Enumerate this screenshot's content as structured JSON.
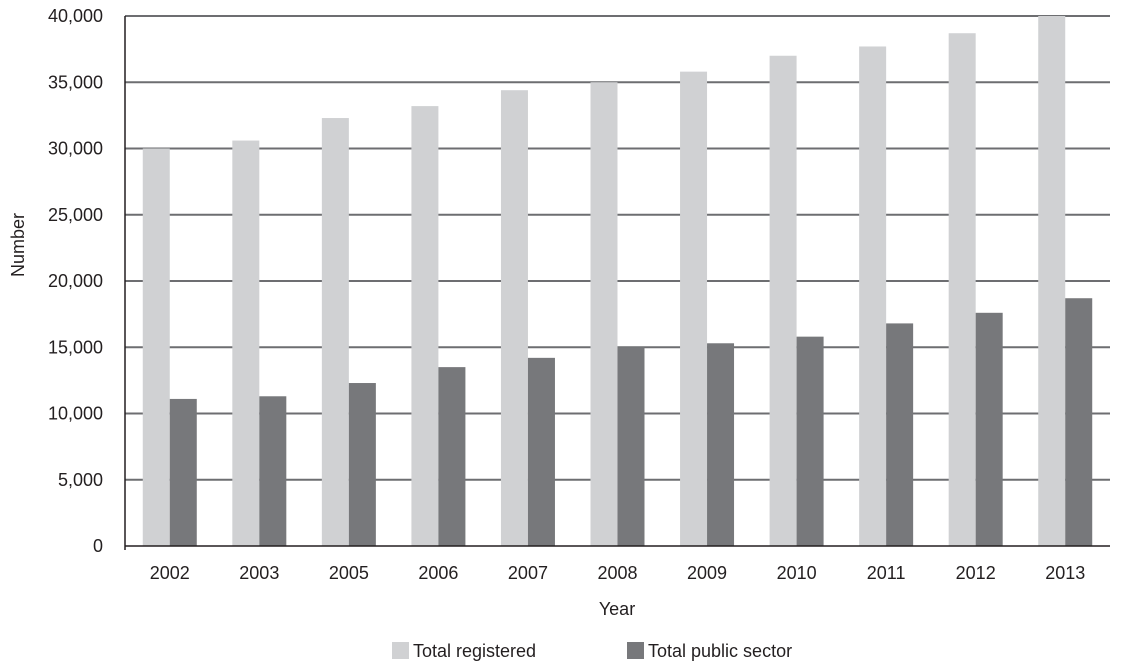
{
  "chart_data": {
    "type": "bar",
    "title": "",
    "xlabel": "Year",
    "ylabel": "Number",
    "categories": [
      "2002",
      "2003",
      "2005",
      "2006",
      "2007",
      "2008",
      "2009",
      "2010",
      "2011",
      "2012",
      "2013"
    ],
    "series": [
      {
        "name": "Total registered",
        "color": "#d0d1d3",
        "values": [
          30000,
          30600,
          32300,
          33200,
          34400,
          35000,
          35800,
          37000,
          37700,
          38700,
          40000
        ]
      },
      {
        "name": "Total public sector",
        "color": "#77787b",
        "values": [
          11100,
          11300,
          12300,
          13500,
          14200,
          15000,
          15300,
          15800,
          16800,
          17600,
          18700
        ]
      }
    ],
    "ylim": [
      0,
      40000
    ],
    "yticks": [
      "0",
      "5,000",
      "10,000",
      "15,000",
      "20,000",
      "25,000",
      "30,000",
      "35,000",
      "40,000"
    ],
    "ytick_values": [
      0,
      5000,
      10000,
      15000,
      20000,
      25000,
      30000,
      35000,
      40000
    ],
    "grid": true,
    "gridline_color": "#6d6e71",
    "legend_position": "bottom-center"
  }
}
